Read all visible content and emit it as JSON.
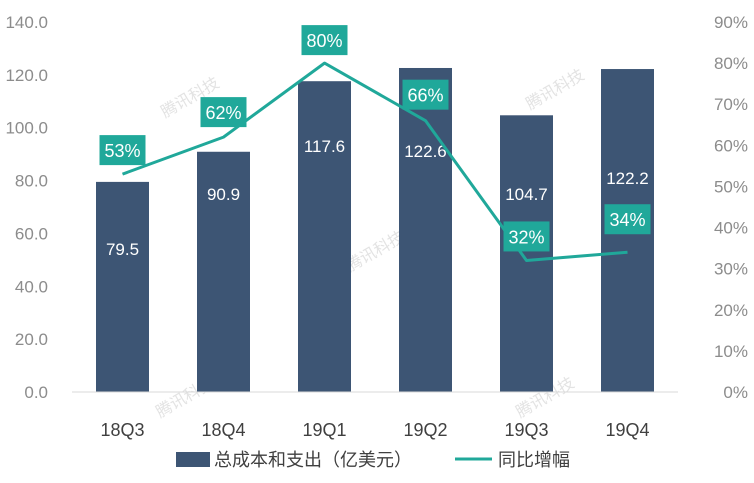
{
  "chart_data": {
    "type": "bar",
    "categories": [
      "18Q3",
      "18Q4",
      "19Q1",
      "19Q2",
      "19Q3",
      "19Q4"
    ],
    "series": [
      {
        "name": "总成本和支出（亿美元）",
        "type": "bar",
        "axis": "left",
        "color": "#3d5574",
        "values": [
          79.5,
          90.9,
          117.6,
          122.6,
          104.7,
          122.2
        ],
        "labels": [
          "79.5",
          "90.9",
          "117.6",
          "122.6",
          "104.7",
          "122.2"
        ]
      },
      {
        "name": "同比增幅",
        "type": "line",
        "axis": "right",
        "color": "#20a89a",
        "values": [
          53,
          62,
          80,
          66,
          32,
          34
        ],
        "labels": [
          "53%",
          "62%",
          "80%",
          "66%",
          "32%",
          "34%"
        ]
      }
    ],
    "y_left": {
      "range": [
        0,
        140
      ],
      "ticks": [
        "0.0",
        "20.0",
        "40.0",
        "60.0",
        "80.0",
        "100.0",
        "120.0",
        "140.0"
      ]
    },
    "y_right": {
      "range": [
        0,
        90
      ],
      "ticks": [
        "0%",
        "10%",
        "20%",
        "30%",
        "40%",
        "50%",
        "60%",
        "70%",
        "80%",
        "90%"
      ]
    },
    "legend_position": "bottom",
    "grid": false,
    "watermark": "腾讯科技"
  }
}
